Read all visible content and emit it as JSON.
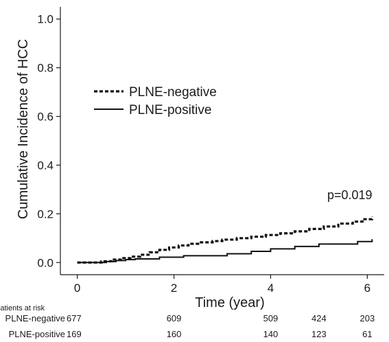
{
  "chart_data": {
    "type": "line",
    "title": "",
    "xlabel": "Time (year)",
    "ylabel": "Cumulative Incidence of HCC",
    "xlim": [
      -0.35,
      6.35
    ],
    "ylim": [
      -0.05,
      1.05
    ],
    "xticks": [
      0,
      2,
      4,
      6
    ],
    "xtick_labels": [
      "0",
      "2",
      "4",
      "6"
    ],
    "yticks": [
      0.0,
      0.2,
      0.4,
      0.6,
      0.8,
      1.0
    ],
    "ytick_labels": [
      "0.0",
      "0.2",
      "0.4",
      "0.6",
      "0.8",
      "1.0"
    ],
    "grid": false,
    "legend_position": "upper-left",
    "annotation": "p=0.019",
    "series": [
      {
        "name": "PLNE-negative",
        "line_style": "dashed",
        "x": [
          0,
          0.35,
          0.5,
          0.7,
          0.9,
          1.1,
          1.3,
          1.5,
          1.7,
          1.9,
          2.1,
          2.3,
          2.5,
          2.8,
          3.0,
          3.3,
          3.6,
          3.9,
          4.2,
          4.5,
          4.8,
          5.1,
          5.4,
          5.7,
          5.9,
          6.1
        ],
        "y": [
          0,
          0,
          0.005,
          0.012,
          0.018,
          0.024,
          0.032,
          0.042,
          0.052,
          0.062,
          0.07,
          0.077,
          0.083,
          0.088,
          0.094,
          0.1,
          0.106,
          0.113,
          0.12,
          0.128,
          0.138,
          0.148,
          0.16,
          0.168,
          0.178,
          0.188
        ]
      },
      {
        "name": "PLNE-positive",
        "line_style": "solid",
        "x": [
          0,
          0.45,
          0.6,
          0.8,
          1.0,
          1.2,
          1.7,
          2.2,
          3.1,
          3.6,
          4.0,
          4.5,
          5.0,
          5.8,
          6.1
        ],
        "y": [
          0,
          0,
          0.004,
          0.008,
          0.012,
          0.015,
          0.022,
          0.028,
          0.036,
          0.046,
          0.056,
          0.066,
          0.076,
          0.086,
          0.096
        ]
      }
    ],
    "risk_table": {
      "title": "Patients at risk",
      "times": [
        0,
        2,
        4,
        5,
        6
      ],
      "rows": [
        {
          "label": "PLNE-negative",
          "values": [
            "677",
            "609",
            "509",
            "424",
            "203"
          ]
        },
        {
          "label": "PLNE-positive",
          "values": [
            "169",
            "160",
            "140",
            "123",
            "61"
          ]
        }
      ]
    }
  }
}
